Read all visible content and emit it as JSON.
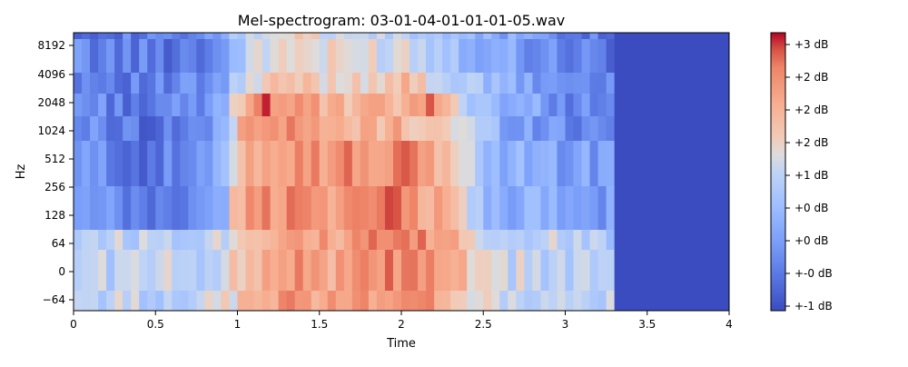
{
  "chart_data": {
    "type": "heatmap",
    "title": "Mel-spectrogram: 03-01-04-01-01-01-05.wav",
    "xlabel": "Time",
    "ylabel": "Hz",
    "x_range": [
      0,
      4.0
    ],
    "x_ticks": [
      0,
      0.5,
      1,
      1.5,
      2,
      2.5,
      3,
      3.5,
      4
    ],
    "x_tick_labels": [
      "0",
      "0.5",
      "1",
      "1.5",
      "2",
      "2.5",
      "3",
      "3.5",
      "4"
    ],
    "y_tick_labels": [
      "8192",
      "4096",
      "2048",
      "1024",
      "512",
      "256",
      "128",
      "64",
      "0",
      "−64"
    ],
    "signal_end_time": 3.3,
    "colormap": "coolwarm",
    "colorbar_label_format": "%+2.0f dB",
    "colorbar_tick_labels": [
      "+3 dB",
      "+2 dB",
      "+2 dB",
      "+2 dB",
      "+1 dB",
      "+0 dB",
      "+0 dB",
      "+-0 dB",
      "+-1 dB"
    ],
    "colorbar_range": [
      -1.1,
      3.3
    ],
    "frequency_bands": [
      {
        "label": "8192",
        "intensity": [
          [
            0,
            -0.4
          ],
          [
            0.5,
            -0.5
          ],
          [
            0.9,
            -0.3
          ],
          [
            1.0,
            0.9
          ],
          [
            1.3,
            1.6
          ],
          [
            1.6,
            1.1
          ],
          [
            2.0,
            1.0
          ],
          [
            2.3,
            0.6
          ],
          [
            2.6,
            0.3
          ],
          [
            3.0,
            -0.3
          ],
          [
            3.3,
            -0.5
          ]
        ]
      },
      {
        "label": "4096",
        "intensity": [
          [
            0,
            -0.3
          ],
          [
            0.5,
            -0.5
          ],
          [
            0.9,
            -0.3
          ],
          [
            1.0,
            0.8
          ],
          [
            1.3,
            1.6
          ],
          [
            1.6,
            1.3
          ],
          [
            2.0,
            1.4
          ],
          [
            2.3,
            0.8
          ],
          [
            2.6,
            0.2
          ],
          [
            3.0,
            -0.3
          ],
          [
            3.3,
            -0.5
          ]
        ]
      },
      {
        "label": "2048",
        "intensity": [
          [
            0,
            -0.2
          ],
          [
            0.5,
            -0.5
          ],
          [
            0.9,
            -0.2
          ],
          [
            1.0,
            1.0
          ],
          [
            1.3,
            1.8
          ],
          [
            1.6,
            1.6
          ],
          [
            2.0,
            1.9
          ],
          [
            2.3,
            1.1
          ],
          [
            2.6,
            0.3
          ],
          [
            3.0,
            -0.2
          ],
          [
            3.3,
            -0.4
          ]
        ]
      },
      {
        "label": "1024",
        "intensity": [
          [
            0,
            -0.1
          ],
          [
            0.5,
            -0.6
          ],
          [
            0.9,
            0.0
          ],
          [
            1.0,
            1.8
          ],
          [
            1.1,
            2.9
          ],
          [
            1.3,
            2.6
          ],
          [
            1.6,
            1.9
          ],
          [
            2.0,
            2.0
          ],
          [
            2.2,
            2.7
          ],
          [
            2.3,
            1.5
          ],
          [
            2.6,
            0.4
          ],
          [
            3.0,
            -0.2
          ],
          [
            3.3,
            -0.3
          ]
        ]
      },
      {
        "label": "512",
        "intensity": [
          [
            0,
            -0.2
          ],
          [
            0.5,
            -0.6
          ],
          [
            0.9,
            -0.1
          ],
          [
            1.0,
            1.9
          ],
          [
            1.1,
            2.8
          ],
          [
            1.3,
            2.5
          ],
          [
            1.6,
            2.0
          ],
          [
            2.0,
            2.1
          ],
          [
            2.3,
            1.6
          ],
          [
            2.6,
            0.3
          ],
          [
            3.0,
            -0.2
          ],
          [
            3.3,
            -0.4
          ]
        ]
      },
      {
        "label": "256",
        "intensity": [
          [
            0,
            -0.1
          ],
          [
            0.5,
            -0.6
          ],
          [
            0.9,
            0.0
          ],
          [
            1.0,
            2.2
          ],
          [
            1.3,
            2.6
          ],
          [
            1.6,
            2.5
          ],
          [
            2.0,
            2.6
          ],
          [
            2.3,
            2.0
          ],
          [
            2.5,
            0.5
          ],
          [
            3.0,
            0.1
          ],
          [
            3.3,
            -0.1
          ]
        ]
      },
      {
        "label": "128",
        "intensity": [
          [
            0,
            -0.1
          ],
          [
            0.5,
            -0.6
          ],
          [
            0.9,
            0.0
          ],
          [
            1.0,
            2.2
          ],
          [
            1.3,
            2.7
          ],
          [
            1.6,
            2.5
          ],
          [
            2.0,
            2.7
          ],
          [
            2.3,
            2.0
          ],
          [
            2.5,
            0.5
          ],
          [
            3.0,
            0.1
          ],
          [
            3.3,
            -0.1
          ]
        ]
      },
      {
        "label": "64",
        "intensity": [
          [
            0,
            1.1
          ],
          [
            0.5,
            1.0
          ],
          [
            0.9,
            1.2
          ],
          [
            1.0,
            1.7
          ],
          [
            1.3,
            2.6
          ],
          [
            1.6,
            2.2
          ],
          [
            2.0,
            2.7
          ],
          [
            2.3,
            2.2
          ],
          [
            2.5,
            1.2
          ],
          [
            3.0,
            1.0
          ],
          [
            3.3,
            0.9
          ]
        ]
      },
      {
        "label": "0",
        "intensity": [
          [
            0,
            1.1
          ],
          [
            0.5,
            1.0
          ],
          [
            0.9,
            1.2
          ],
          [
            1.0,
            1.7
          ],
          [
            1.3,
            2.6
          ],
          [
            1.6,
            2.2
          ],
          [
            2.0,
            2.7
          ],
          [
            2.3,
            2.2
          ],
          [
            2.5,
            1.2
          ],
          [
            3.0,
            1.0
          ],
          [
            3.3,
            0.9
          ]
        ]
      },
      {
        "label": "−64",
        "intensity": [
          [
            0,
            1.1
          ],
          [
            0.5,
            1.0
          ],
          [
            0.9,
            1.2
          ],
          [
            1.0,
            1.7
          ],
          [
            1.3,
            2.6
          ],
          [
            1.6,
            2.2
          ],
          [
            2.0,
            2.7
          ],
          [
            2.3,
            2.2
          ],
          [
            2.5,
            1.2
          ],
          [
            3.0,
            1.0
          ],
          [
            3.3,
            0.9
          ]
        ]
      }
    ],
    "silence_intensity": -1.1,
    "grid": false,
    "colorbar_position": "right"
  }
}
